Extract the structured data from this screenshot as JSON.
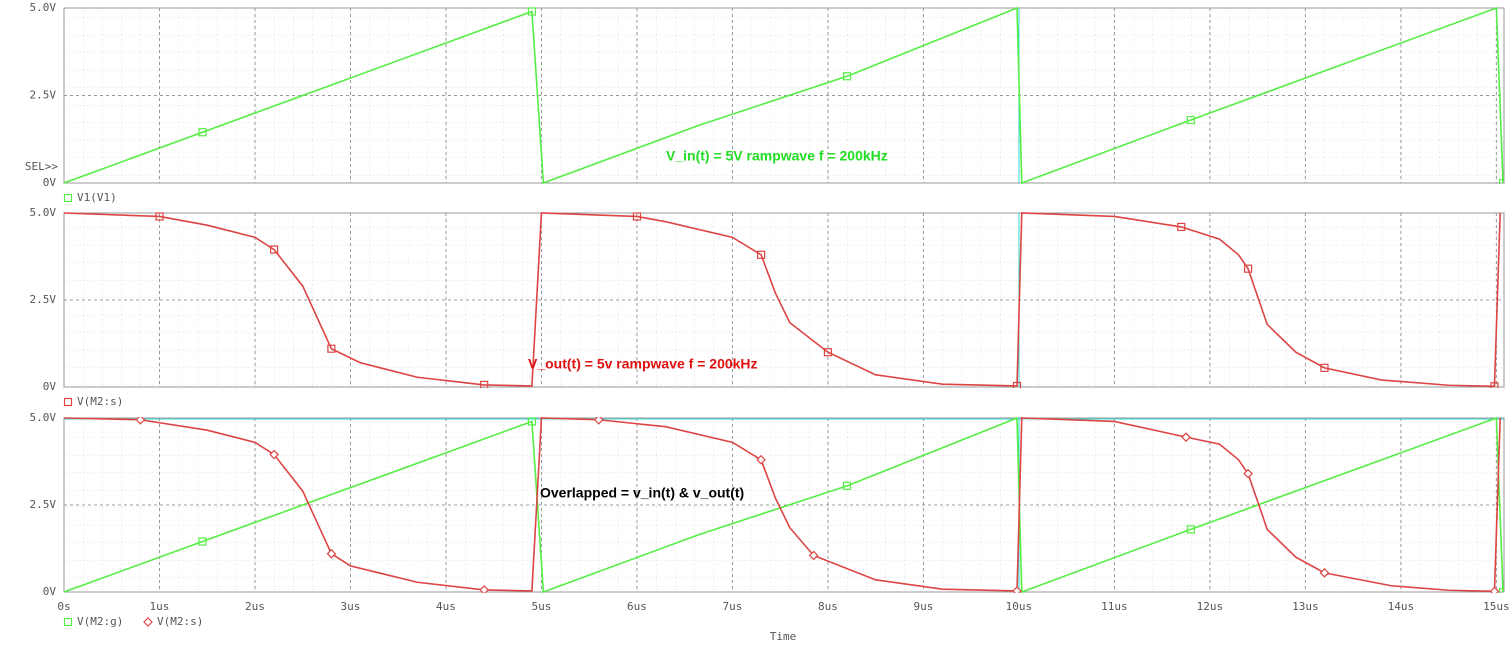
{
  "chart_data": [
    {
      "type": "line",
      "selector_label": "SEL>>",
      "annotation": "V_in(t) = 5V rampwave f = 200kHz",
      "annotation_color": "#22dd22",
      "xlim": [
        0,
        15.08
      ],
      "ylim": [
        0,
        5
      ],
      "yticks": [
        {
          "value": 0,
          "label": "0V"
        },
        {
          "value": 2.5,
          "label": "2.5V"
        },
        {
          "value": 5,
          "label": "5.0V"
        }
      ],
      "series": [
        {
          "name": "V1(V1)",
          "color": "#55ee44",
          "marker": "square",
          "x": [
            0,
            1.45,
            2.8,
            4.2,
            4.9,
            5.02,
            6.65,
            8.2,
            9.98,
            10.03,
            11.8,
            13.2,
            15.0,
            15.07
          ],
          "values": [
            0,
            1.45,
            2.8,
            4.2,
            4.9,
            0,
            1.65,
            3.05,
            5.0,
            0,
            1.8,
            3.2,
            5.0,
            0
          ]
        }
      ]
    },
    {
      "type": "line",
      "annotation": "V_out(t) = 5v rampwave f = 200kHz",
      "annotation_color": "#e01010",
      "xlim": [
        0,
        15.08
      ],
      "ylim": [
        0,
        5
      ],
      "yticks": [
        {
          "value": 0,
          "label": "0V"
        },
        {
          "value": 2.5,
          "label": "2.5V"
        },
        {
          "value": 5,
          "label": "5.0V"
        }
      ],
      "series": [
        {
          "name": "V(M2:s)",
          "color": "#dd4444",
          "marker": "square",
          "x": [
            0,
            1.0,
            1.5,
            2.0,
            2.2,
            2.5,
            2.6,
            2.8,
            3.1,
            3.7,
            4.4,
            4.9,
            5.0,
            6.0,
            6.3,
            7.0,
            7.3,
            7.45,
            7.6,
            8.0,
            8.5,
            9.2,
            9.98,
            10.03,
            11.0,
            11.7,
            12.1,
            12.3,
            12.4,
            12.6,
            12.9,
            13.2,
            13.8,
            14.5,
            14.98,
            15.04
          ],
          "values": [
            5.0,
            4.9,
            4.65,
            4.3,
            3.95,
            2.9,
            2.3,
            1.1,
            0.7,
            0.28,
            0.06,
            0.03,
            5.0,
            4.9,
            4.75,
            4.3,
            3.8,
            2.7,
            1.85,
            1.0,
            0.35,
            0.08,
            0.03,
            5.0,
            4.9,
            4.6,
            4.25,
            3.8,
            3.4,
            1.8,
            1.0,
            0.55,
            0.2,
            0.05,
            0.02,
            5.0
          ]
        }
      ]
    },
    {
      "type": "line",
      "xlabel": "Time",
      "annotation": "Overlapped = v_in(t) & v_out(t)",
      "annotation_color": "#000000",
      "xlim": [
        0,
        15.08
      ],
      "ylim": [
        0,
        5
      ],
      "xticks": [
        {
          "value": 0,
          "label": "0s"
        },
        {
          "value": 1,
          "label": "1us"
        },
        {
          "value": 2,
          "label": "2us"
        },
        {
          "value": 3,
          "label": "3us"
        },
        {
          "value": 4,
          "label": "4us"
        },
        {
          "value": 5,
          "label": "5us"
        },
        {
          "value": 6,
          "label": "6us"
        },
        {
          "value": 7,
          "label": "7us"
        },
        {
          "value": 8,
          "label": "8us"
        },
        {
          "value": 9,
          "label": "9us"
        },
        {
          "value": 10,
          "label": "10us"
        },
        {
          "value": 11,
          "label": "11us"
        },
        {
          "value": 12,
          "label": "12us"
        },
        {
          "value": 13,
          "label": "13us"
        },
        {
          "value": 14,
          "label": "14us"
        },
        {
          "value": 15,
          "label": "15us"
        }
      ],
      "yticks": [
        {
          "value": 0,
          "label": "0V"
        },
        {
          "value": 2.5,
          "label": "2.5V"
        },
        {
          "value": 5,
          "label": "5.0V"
        }
      ],
      "series": [
        {
          "name": "V(M2:g)",
          "color": "#55ee44",
          "marker": "square",
          "x": [
            0,
            1.45,
            2.8,
            4.2,
            4.9,
            5.02,
            6.65,
            8.2,
            9.98,
            10.03,
            11.8,
            13.2,
            15.0,
            15.07
          ],
          "values": [
            0,
            1.45,
            2.8,
            4.2,
            4.9,
            0,
            1.65,
            3.05,
            5.0,
            0,
            1.8,
            3.2,
            5.0,
            0
          ]
        },
        {
          "name": "V(M2:s)",
          "color": "#dd4444",
          "marker": "diamond",
          "x": [
            0,
            0.8,
            1.5,
            2.0,
            2.2,
            2.5,
            2.6,
            2.8,
            3.0,
            3.7,
            4.4,
            4.9,
            5.0,
            5.6,
            6.3,
            7.0,
            7.3,
            7.45,
            7.6,
            7.85,
            8.5,
            9.2,
            9.98,
            10.03,
            11.0,
            11.75,
            12.1,
            12.3,
            12.4,
            12.6,
            12.9,
            13.2,
            13.9,
            14.5,
            14.98,
            15.04
          ],
          "values": [
            5.0,
            4.95,
            4.65,
            4.3,
            3.95,
            2.9,
            2.3,
            1.1,
            0.75,
            0.28,
            0.06,
            0.03,
            5.0,
            4.95,
            4.75,
            4.3,
            3.8,
            2.7,
            1.85,
            1.05,
            0.35,
            0.08,
            0.03,
            5.0,
            4.9,
            4.45,
            4.25,
            3.8,
            3.4,
            1.8,
            1.0,
            0.55,
            0.18,
            0.05,
            0.02,
            5.0
          ]
        }
      ]
    }
  ]
}
